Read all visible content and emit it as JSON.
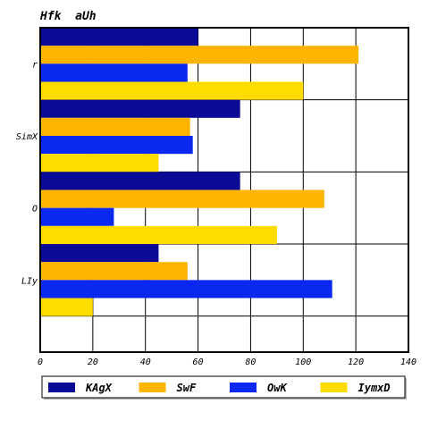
{
  "chart_data": {
    "type": "bar",
    "orientation": "horizontal",
    "title": "Hfk  aUh",
    "xlabel": "",
    "ylabel": "",
    "xlim": [
      0,
      140
    ],
    "xticks": [
      0,
      20,
      40,
      60,
      80,
      100,
      120,
      140
    ],
    "grid": true,
    "legend_position": "bottom",
    "categories": [
      "r",
      "SimX",
      "O",
      "LIy"
    ],
    "series": [
      {
        "name": "KAgX",
        "color": "#0a0a96",
        "values": [
          60,
          76,
          76,
          45
        ]
      },
      {
        "name": "SwF",
        "color": "#ffb400",
        "values": [
          121,
          57,
          108,
          56
        ]
      },
      {
        "name": "OwK",
        "color": "#0a28f0",
        "values": [
          56,
          58,
          28,
          111
        ]
      },
      {
        "name": "IymxD",
        "color": "#ffdc00",
        "values": [
          100,
          45,
          90,
          20
        ]
      }
    ]
  }
}
